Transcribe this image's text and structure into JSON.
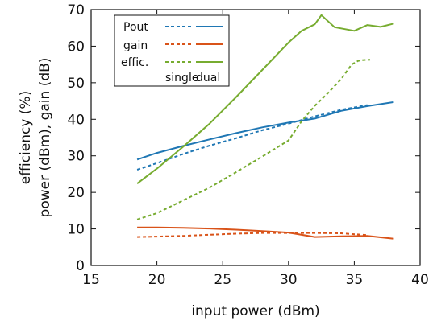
{
  "chart_data": {
    "type": "line",
    "xlabel": "input power (dBm)",
    "ylabel_lines": [
      "efficiency (%)",
      "power (dBm), gain (dB)"
    ],
    "xlim": [
      15,
      40
    ],
    "ylim": [
      0,
      70
    ],
    "xticks": [
      15,
      20,
      25,
      30,
      35,
      40
    ],
    "yticks": [
      0,
      10,
      20,
      30,
      40,
      50,
      60,
      70
    ],
    "grid": false,
    "legend": {
      "position": "top-left",
      "rows": [
        "Pout",
        "gain",
        "effic."
      ],
      "columns": [
        "single",
        "dual"
      ]
    },
    "colors": {
      "Pout": "#1f77b4",
      "gain": "#d95319",
      "effic.": "#77ac30"
    },
    "series": [
      {
        "name": "Pout",
        "variant": "single",
        "style": "dashed",
        "x": [
          18.5,
          20,
          22,
          24,
          26,
          28,
          30,
          32,
          34,
          36
        ],
        "y": [
          26.2,
          28,
          30.5,
          32.8,
          34.8,
          37,
          38.8,
          40.8,
          42.6,
          43.9
        ]
      },
      {
        "name": "Pout",
        "variant": "dual",
        "style": "solid",
        "x": [
          18.5,
          20,
          22,
          24,
          26,
          28,
          30,
          32,
          34,
          36,
          38
        ],
        "y": [
          29,
          30.8,
          32.7,
          34.5,
          36.2,
          37.8,
          39.1,
          40.2,
          42.3,
          43.6,
          44.7
        ]
      },
      {
        "name": "gain",
        "variant": "single",
        "style": "dashed",
        "x": [
          18.5,
          20,
          22,
          24,
          26,
          28,
          30,
          32,
          34,
          36
        ],
        "y": [
          7.8,
          7.9,
          8.1,
          8.4,
          8.7,
          8.9,
          8.9,
          8.9,
          8.8,
          8.3
        ]
      },
      {
        "name": "gain",
        "variant": "dual",
        "style": "solid",
        "x": [
          18.5,
          20,
          22,
          24,
          26,
          28,
          30,
          32,
          34,
          36,
          38
        ],
        "y": [
          10.4,
          10.4,
          10.3,
          10.1,
          9.8,
          9.4,
          9.0,
          7.8,
          8.0,
          8.1,
          7.3
        ]
      },
      {
        "name": "effic.",
        "variant": "single",
        "style": "dashed",
        "x": [
          18.5,
          20,
          22,
          24,
          26,
          28,
          30,
          31,
          32,
          33,
          34,
          34.8,
          35.3,
          35.6,
          36.2
        ],
        "y": [
          12.6,
          14.3,
          17.8,
          21.3,
          25.5,
          29.8,
          34.2,
          39.5,
          43.7,
          47.2,
          51,
          55,
          56,
          56.2,
          56.3
        ]
      },
      {
        "name": "effic.",
        "variant": "dual",
        "style": "solid",
        "x": [
          18.5,
          20,
          22,
          24,
          26,
          28,
          30,
          31,
          32,
          32.5,
          33.5,
          35,
          36,
          37,
          38
        ],
        "y": [
          22.4,
          26.5,
          32.5,
          38.8,
          46,
          53.5,
          61,
          64.2,
          66,
          68.5,
          65.2,
          64.2,
          65.8,
          65.3,
          66.2
        ]
      }
    ]
  }
}
